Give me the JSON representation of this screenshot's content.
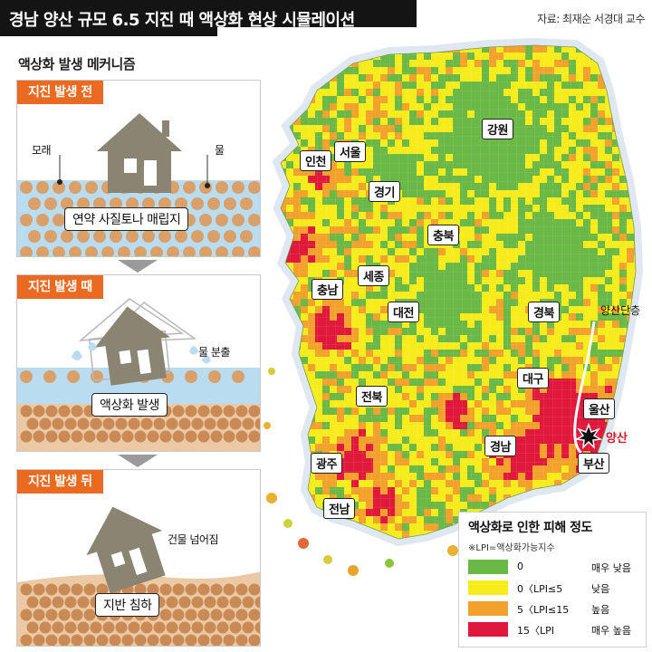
{
  "header": {
    "title": "경남 양산 규모 6.5 지진 때 액상화 현상 시뮬레이션",
    "source": "자료: 최재순 서경대 교수"
  },
  "mechanism": {
    "title": "액상화 발생 메커니즘",
    "before": {
      "tag": "지진 발생 전",
      "sand_label": "모래",
      "water_label": "물",
      "ground_label": "연약 사질토나 매립지"
    },
    "during": {
      "tag": "지진 발생 때",
      "water_label": "물 분출",
      "ground_label": "액상화 발생"
    },
    "after": {
      "tag": "지진 발생 뒤",
      "building_label": "건물 넘어짐",
      "ground_label": "지반 침하"
    }
  },
  "map": {
    "regions": {
      "gangwon": "강원",
      "seoul": "서울",
      "incheon": "인천",
      "gyeonggi": "경기",
      "chungbuk": "충북",
      "chungnam": "충남",
      "sejong": "세종",
      "daejeon": "대전",
      "gyeongbuk": "경북",
      "jeonbuk": "전북",
      "daegu": "대구",
      "ulsan": "울산",
      "gyeongnam": "경남",
      "busan": "부산",
      "gwangju": "광주",
      "jeonnam": "전남"
    },
    "fault_label": "양산단층",
    "epicenter_label": "양산"
  },
  "legend": {
    "title": "액상화로 인한 피해 정도",
    "note": "※LPI=액상화가능지수",
    "items": [
      {
        "range": "0",
        "level": "매우 낮음",
        "color": "#6ab846"
      },
      {
        "range": "0〈LPI≤5",
        "level": "낮음",
        "color": "#f6ec1c"
      },
      {
        "range": "5〈LPI≤15",
        "level": "높음",
        "color": "#f2a12c"
      },
      {
        "range": "15〈LPI",
        "level": "매우 높음",
        "color": "#e0193c"
      }
    ]
  },
  "colors": {
    "accent_orange": "#ea6a22",
    "water_blue": "#b9dcf0",
    "sand_brown": "#d9a06a",
    "house_gray": "#8a8472",
    "sea": "#e6eef5"
  }
}
